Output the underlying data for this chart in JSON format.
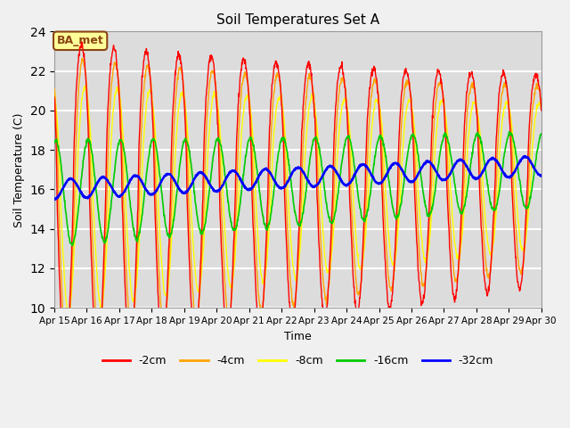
{
  "title": "Soil Temperatures Set A",
  "xlabel": "Time",
  "ylabel": "Soil Temperature (C)",
  "ylim": [
    10,
    24
  ],
  "yticks": [
    10,
    12,
    14,
    16,
    18,
    20,
    22,
    24
  ],
  "x_labels": [
    "Apr 15",
    "Apr 16",
    "Apr 17",
    "Apr 18",
    "Apr 19",
    "Apr 20",
    "Apr 21",
    "Apr 22",
    "Apr 23",
    "Apr 24",
    "Apr 25",
    "Apr 26",
    "Apr 27",
    "Apr 28",
    "Apr 29",
    "Apr 30"
  ],
  "legend_labels": [
    "-2cm",
    "-4cm",
    "-8cm",
    "-16cm",
    "-32cm"
  ],
  "legend_colors": [
    "#FF0000",
    "#FFA500",
    "#FFFF00",
    "#00CC00",
    "#0000FF"
  ],
  "annotation_text": "BA_met",
  "annotation_bg": "#FFFF99",
  "annotation_border": "#8B4513",
  "background_color": "#DCDCDC",
  "grid_color": "#FFFFFF",
  "fig_bg": "#F0F0F0"
}
